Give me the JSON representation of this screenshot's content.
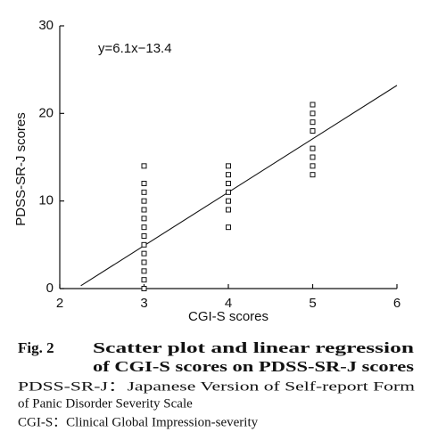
{
  "chart_data": {
    "type": "scatter",
    "x_label": "CGI-S scores",
    "y_label": "PDSS-SR-J scores",
    "x": [
      3,
      3,
      3,
      3,
      3,
      3,
      3,
      3,
      3,
      3,
      3,
      3,
      3,
      3,
      4,
      4,
      4,
      4,
      4,
      4,
      4,
      5,
      5,
      5,
      5,
      5,
      5,
      5,
      5
    ],
    "values": [
      0,
      1,
      2,
      3,
      4,
      5,
      6,
      7,
      8,
      9,
      10,
      11,
      12,
      14,
      7,
      9,
      10,
      11,
      12,
      13,
      14,
      13,
      14,
      15,
      16,
      18,
      19,
      20,
      21
    ],
    "color": "#111111",
    "xlim": [
      2,
      6
    ],
    "ylim": [
      0,
      30
    ],
    "xticks": [
      2,
      3,
      4,
      5,
      6
    ],
    "yticks": [
      0,
      10,
      20,
      30
    ],
    "regression": {
      "label": "y=6.1x−13.4",
      "slope": 6.1,
      "intercept": -13.4,
      "x_range": [
        2.25,
        6
      ]
    }
  },
  "caption": {
    "figure": "Fig. 2",
    "title_line1": "Scatter plot and linear regression",
    "title_line2": "of CGI-S scores on PDSS-SR-J scores",
    "notes": [
      "PDSS-SR-J：Japanese Version of Self-report Form",
      "of Panic Disorder Severity Scale",
      "CGI-S：Clinical Global Impression-severity"
    ]
  }
}
